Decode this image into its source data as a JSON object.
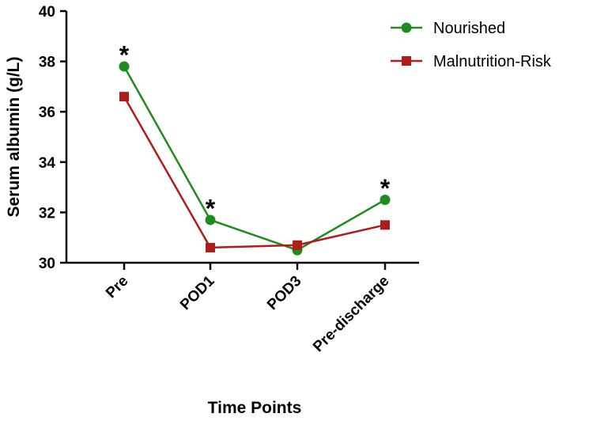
{
  "chart_data": {
    "type": "line",
    "title": "",
    "xlabel": "Time Points",
    "ylabel": "Serum albumin (g/L)",
    "ylim": [
      30,
      40
    ],
    "yticks": [
      30,
      32,
      34,
      36,
      38,
      40
    ],
    "categories": [
      "Pre",
      "POD1",
      "POD3",
      "Pre-discharge"
    ],
    "legend_position": "top-right",
    "series": [
      {
        "name": "Nourished",
        "color": "#1e8c1e",
        "marker": "circle",
        "values": [
          37.8,
          31.7,
          30.5,
          32.5
        ]
      },
      {
        "name": "Malnutrition-Risk",
        "color": "#b01c1c",
        "marker": "square",
        "values": [
          36.6,
          30.6,
          30.7,
          31.5
        ]
      }
    ],
    "annotations": [
      {
        "category": "Pre",
        "text": "*",
        "y": 38.6
      },
      {
        "category": "POD1",
        "text": "*",
        "y": 32.5
      },
      {
        "category": "Pre-discharge",
        "text": "*",
        "y": 33.3
      }
    ]
  }
}
